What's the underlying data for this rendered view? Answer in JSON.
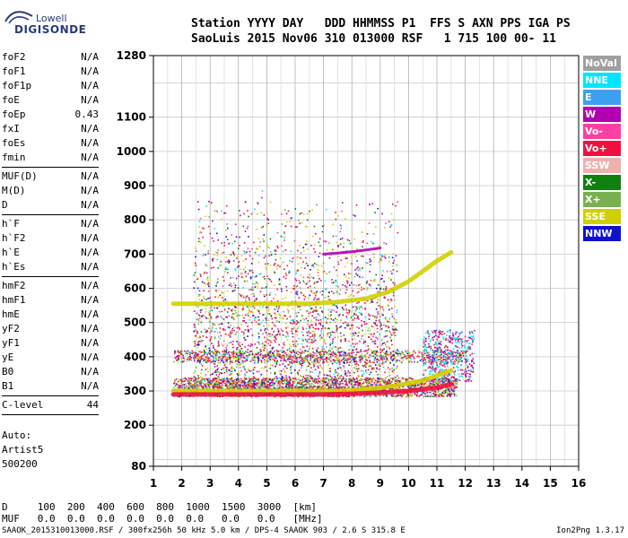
{
  "logo": {
    "line1": "Lowell",
    "line2": "DIGISONDE"
  },
  "header": {
    "labels": "Station YYYY DAY   DDD HHMMSS P1  FFS S AXN PPS IGA PS",
    "values": "SaoLuis 2015 Nov06 310 013000 RSF   1 715 100 00- 11"
  },
  "params": [
    {
      "group": [
        {
          "name": "foF2",
          "value": "N/A"
        },
        {
          "name": "foF1",
          "value": "N/A"
        },
        {
          "name": "foF1p",
          "value": "N/A"
        },
        {
          "name": "foE",
          "value": "N/A"
        },
        {
          "name": "foEp",
          "value": "0.43"
        },
        {
          "name": "fxI",
          "value": "N/A"
        },
        {
          "name": "foEs",
          "value": "N/A"
        },
        {
          "name": "fmin",
          "value": "N/A"
        }
      ]
    },
    {
      "group": [
        {
          "name": "MUF(D)",
          "value": "N/A"
        },
        {
          "name": "M(D)",
          "value": "N/A"
        },
        {
          "name": "D",
          "value": "N/A"
        }
      ]
    },
    {
      "group": [
        {
          "name": "h`F",
          "value": "N/A"
        },
        {
          "name": "h`F2",
          "value": "N/A"
        },
        {
          "name": "h`E",
          "value": "N/A"
        },
        {
          "name": "h`Es",
          "value": "N/A"
        }
      ]
    },
    {
      "group": [
        {
          "name": "hmF2",
          "value": "N/A"
        },
        {
          "name": "hmF1",
          "value": "N/A"
        },
        {
          "name": "hmE",
          "value": "N/A"
        },
        {
          "name": "yF2",
          "value": "N/A"
        },
        {
          "name": "yF1",
          "value": "N/A"
        },
        {
          "name": "yE",
          "value": "N/A"
        },
        {
          "name": "B0",
          "value": "N/A"
        },
        {
          "name": "B1",
          "value": "N/A"
        }
      ]
    },
    {
      "group": [
        {
          "name": "C-level",
          "value": "44"
        }
      ]
    }
  ],
  "auto": {
    "l1": "Auto:",
    "l2": "Artist5",
    "l3": "500200"
  },
  "legend": [
    {
      "label": "NoVal",
      "color": "#a0a0a0"
    },
    {
      "label": "NNE",
      "color": "#00e5ff"
    },
    {
      "label": "E",
      "color": "#3ca0f0"
    },
    {
      "label": "W",
      "color": "#b000b0"
    },
    {
      "label": "Vo-",
      "color": "#ff40a0"
    },
    {
      "label": "Vo+",
      "color": "#f01040"
    },
    {
      "label": "SSW",
      "color": "#f0b0b0"
    },
    {
      "label": "X-",
      "color": "#108010"
    },
    {
      "label": "X+",
      "color": "#78b050"
    },
    {
      "label": "SSE",
      "color": "#d0d000"
    },
    {
      "label": "NNW",
      "color": "#1010d0"
    }
  ],
  "bottom": {
    "d_row": "D     100  200  400  600  800  1000  1500  3000  [km]",
    "muf_row": "MUF   0.0  0.0  0.0  0.0  0.0  0.0   0.0   0.0   [MHz]"
  },
  "footer": {
    "left": "SAAOK_2015310013000.RSF / 300fx256h 50 kHz 5.0 km / DPS-4 SAAOK 903 / 2.6 S 315.8 E",
    "right": "Ion2Png 1.3.17"
  },
  "chart_data": {
    "type": "scatter",
    "xlim": [
      1,
      16
    ],
    "x_ticks": [
      1,
      2,
      3,
      4,
      5,
      6,
      7,
      8,
      9,
      10,
      11,
      12,
      13,
      14,
      15,
      16
    ],
    "ylim": [
      80,
      1280
    ],
    "y_ticks": [
      80,
      200,
      300,
      400,
      500,
      600,
      700,
      800,
      900,
      1000,
      1100,
      1280
    ],
    "grid": true,
    "traces": [
      {
        "name": "F-layer trace",
        "color": "#d0d000",
        "x": [
          1.7,
          2.5,
          3.5,
          4.5,
          5.5,
          6.5,
          7.5,
          8.5,
          9.5,
          10.5,
          11.0,
          11.5
        ],
        "y": [
          300,
          300,
          300,
          300,
          300,
          300,
          300,
          305,
          315,
          330,
          345,
          360
        ]
      },
      {
        "name": "Second-hop trace",
        "color": "#d0d000",
        "x": [
          1.7,
          2.5,
          3.5,
          4.5,
          5.5,
          6.5,
          7.5,
          8.5,
          9.3,
          10.0,
          10.5,
          11.0,
          11.5
        ],
        "y": [
          555,
          555,
          555,
          555,
          555,
          555,
          560,
          570,
          590,
          620,
          650,
          680,
          705
        ]
      },
      {
        "name": "Upper segment",
        "color": "#b000b0",
        "x": [
          7.0,
          7.5,
          8.0,
          8.5,
          9.0
        ],
        "y": [
          700,
          703,
          707,
          712,
          718
        ]
      },
      {
        "name": "Low echo band",
        "color": "#f01040",
        "x": [
          1.7,
          3.0,
          4.0,
          5.0,
          6.0,
          7.0,
          8.0,
          9.0,
          10.0,
          11.0,
          11.5
        ],
        "y": [
          290,
          290,
          290,
          290,
          290,
          290,
          292,
          295,
          300,
          310,
          320
        ]
      }
    ]
  }
}
